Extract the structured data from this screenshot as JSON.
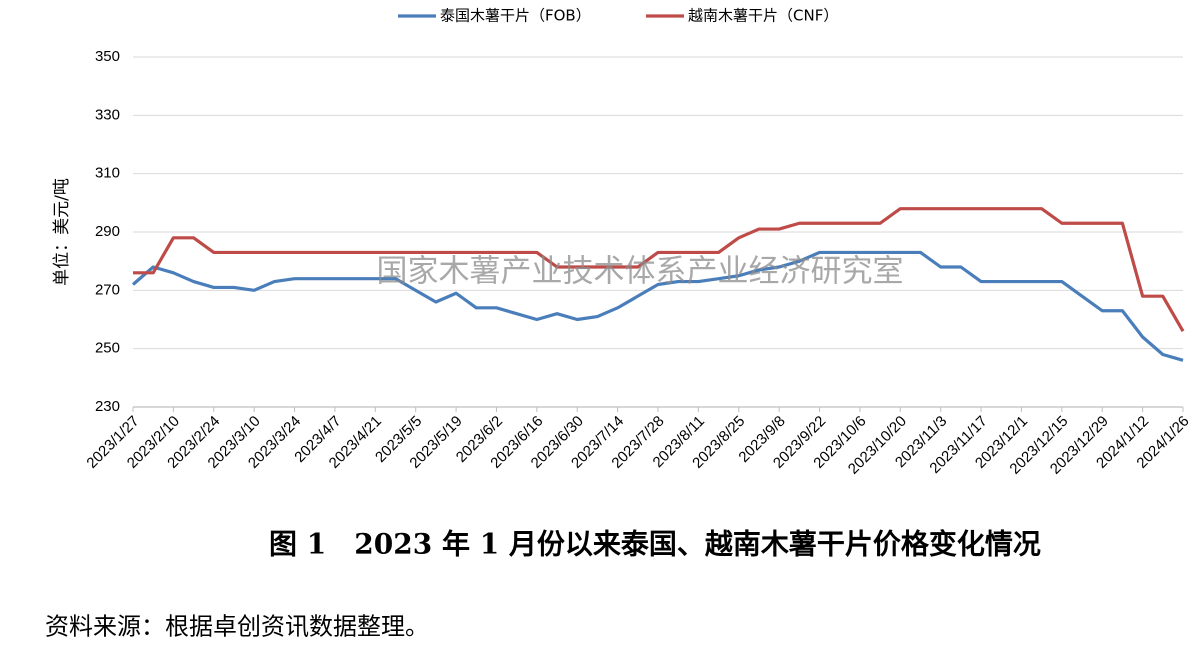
{
  "chart_data": {
    "type": "line",
    "y_label": "单位：美元/吨",
    "watermark": "国家木薯产业技术体系产业经济研究室",
    "categories": [
      "2023/1/27",
      null,
      "2023/2/10",
      null,
      "2023/2/24",
      null,
      "2023/3/10",
      null,
      "2023/3/24",
      null,
      "2023/4/7",
      null,
      "2023/4/21",
      null,
      "2023/5/5",
      null,
      "2023/5/19",
      null,
      "2023/6/2",
      null,
      "2023/6/16",
      null,
      "2023/6/30",
      null,
      "2023/7/14",
      null,
      "2023/7/28",
      null,
      "2023/8/11",
      null,
      "2023/8/25",
      null,
      "2023/9/8",
      null,
      "2023/9/22",
      null,
      "2023/10/6",
      null,
      "2023/10/20",
      null,
      "2023/11/3",
      null,
      "2023/11/17",
      null,
      "2023/12/1",
      null,
      "2023/12/15",
      null,
      "2023/12/29",
      null,
      "2024/1/12",
      null,
      "2024/1/26"
    ],
    "series": [
      {
        "name": "泰国木薯干片（FOB）",
        "color": "#4a7ebb",
        "values": [
          272,
          278,
          276,
          273,
          271,
          271,
          270,
          273,
          274,
          274,
          274,
          274,
          274,
          274,
          270,
          266,
          269,
          264,
          264,
          262,
          260,
          262,
          260,
          261,
          264,
          268,
          272,
          273,
          273,
          274,
          275,
          277,
          278,
          280,
          283,
          283,
          283,
          283,
          283,
          283,
          278,
          278,
          273,
          273,
          273,
          273,
          273,
          268,
          263,
          263,
          254,
          248,
          246
        ]
      },
      {
        "name": "越南木薯干片（CNF）",
        "color": "#be4b48",
        "values": [
          276,
          276,
          288,
          288,
          283,
          283,
          283,
          283,
          283,
          283,
          283,
          283,
          283,
          283,
          283,
          283,
          283,
          283,
          283,
          283,
          283,
          278,
          278,
          278,
          278,
          278,
          283,
          283,
          283,
          283,
          288,
          291,
          291,
          293,
          293,
          293,
          293,
          293,
          298,
          298,
          298,
          298,
          298,
          298,
          298,
          298,
          293,
          293,
          293,
          293,
          268,
          268,
          256
        ]
      }
    ],
    "ylim": [
      230,
      350
    ],
    "yticks": [
      230,
      250,
      270,
      290,
      310,
      330,
      350
    ],
    "grid": true,
    "legend": "top"
  },
  "caption": "图 1　2023 年 1 月份以来泰国、越南木薯干片价格变化情况",
  "source": "资料来源：根据卓创资讯数据整理。"
}
